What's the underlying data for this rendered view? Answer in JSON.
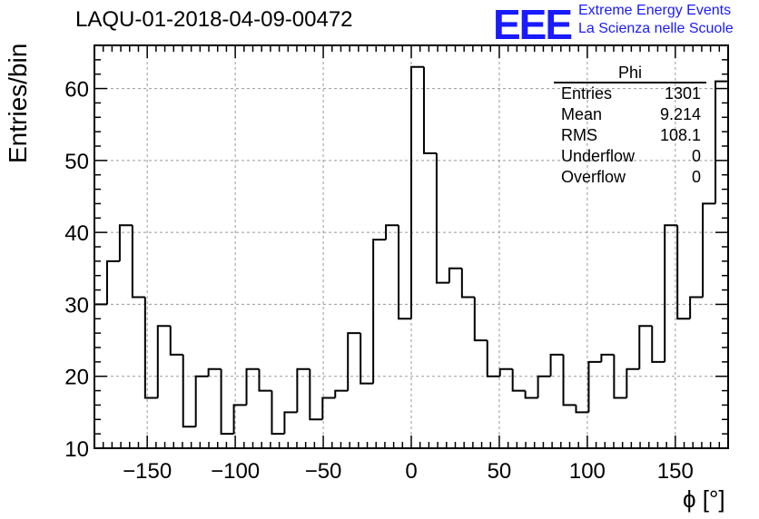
{
  "title": "LAQU-01-2018-04-09-00472",
  "logo": {
    "mark": "EEE",
    "line1": "Extreme Energy Events",
    "line2": "La Scienza nelle Scuole",
    "color": "#1a1aff"
  },
  "stats_box": {
    "name": "Phi",
    "rows": [
      {
        "label": "Entries",
        "value": "1301"
      },
      {
        "label": "Mean",
        "value": "9.214"
      },
      {
        "label": "RMS",
        "value": "108.1"
      },
      {
        "label": "Underflow",
        "value": "0"
      },
      {
        "label": "Overflow",
        "value": "0"
      }
    ]
  },
  "chart_data": {
    "type": "bar",
    "subtype": "histogram-step",
    "xlabel": "ϕ [°]",
    "ylabel": "Entries/bin",
    "xlim": [
      -180,
      180
    ],
    "ylim": [
      10,
      66
    ],
    "bin_width": 7.2,
    "bin_edges_start": -180,
    "values": [
      30,
      36,
      41,
      31,
      17,
      27,
      23,
      13,
      20,
      21,
      12,
      16,
      21,
      18,
      12,
      15,
      21,
      14,
      17,
      18,
      26,
      19,
      39,
      41,
      28,
      63,
      51,
      33,
      35,
      31,
      25,
      20,
      21,
      18,
      17,
      20,
      23,
      16,
      15,
      22,
      23,
      17,
      21,
      27,
      22,
      41,
      28,
      31,
      44,
      61
    ],
    "x_ticks": [
      -150,
      -100,
      -50,
      0,
      50,
      100,
      150
    ],
    "x_tick_labels": [
      "−150",
      "−100",
      "−50",
      "0",
      "50",
      "100",
      "150"
    ],
    "y_ticks": [
      10,
      20,
      30,
      40,
      50,
      60
    ],
    "y_tick_labels": [
      "10",
      "20",
      "30",
      "40",
      "50",
      "60"
    ],
    "grid": true,
    "line_color": "#000000"
  }
}
